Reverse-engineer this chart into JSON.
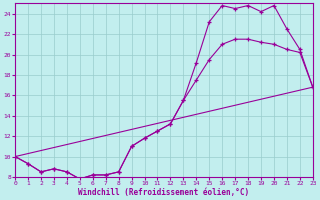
{
  "xlabel": "Windchill (Refroidissement éolien,°C)",
  "bg_color": "#c2eeee",
  "line_color": "#990099",
  "grid_color": "#99cccc",
  "xmin": 0,
  "xmax": 23,
  "ymin": 8,
  "ymax": 25,
  "yticks": [
    8,
    10,
    12,
    14,
    16,
    18,
    20,
    22,
    24
  ],
  "xticks": [
    0,
    1,
    2,
    3,
    4,
    5,
    6,
    7,
    8,
    9,
    10,
    11,
    12,
    13,
    14,
    15,
    16,
    17,
    18,
    19,
    20,
    21,
    22,
    23
  ],
  "curve1_x": [
    0,
    1,
    2,
    3,
    4,
    5,
    6,
    7,
    8,
    9,
    10,
    11,
    12,
    13,
    14,
    15,
    16,
    17,
    18,
    19,
    20,
    21,
    22,
    23
  ],
  "curve1_y": [
    10.0,
    9.3,
    8.5,
    8.8,
    8.5,
    7.8,
    8.2,
    8.2,
    8.5,
    11.0,
    11.8,
    12.5,
    13.2,
    15.5,
    19.2,
    23.2,
    24.8,
    24.5,
    24.8,
    24.2,
    24.8,
    22.5,
    20.5,
    16.8
  ],
  "curve2_x": [
    0,
    1,
    2,
    3,
    4,
    5,
    6,
    7,
    8,
    9,
    10,
    11,
    12,
    13,
    14,
    15,
    16,
    17,
    18,
    19,
    20,
    21,
    22,
    23
  ],
  "curve2_y": [
    10.0,
    9.3,
    8.5,
    8.8,
    8.5,
    7.8,
    8.2,
    8.2,
    8.5,
    11.0,
    11.8,
    12.5,
    13.2,
    15.5,
    17.5,
    19.5,
    21.0,
    21.5,
    21.5,
    21.2,
    21.0,
    20.5,
    20.2,
    16.8
  ],
  "curve3_x": [
    0,
    23
  ],
  "curve3_y": [
    10.0,
    16.8
  ]
}
